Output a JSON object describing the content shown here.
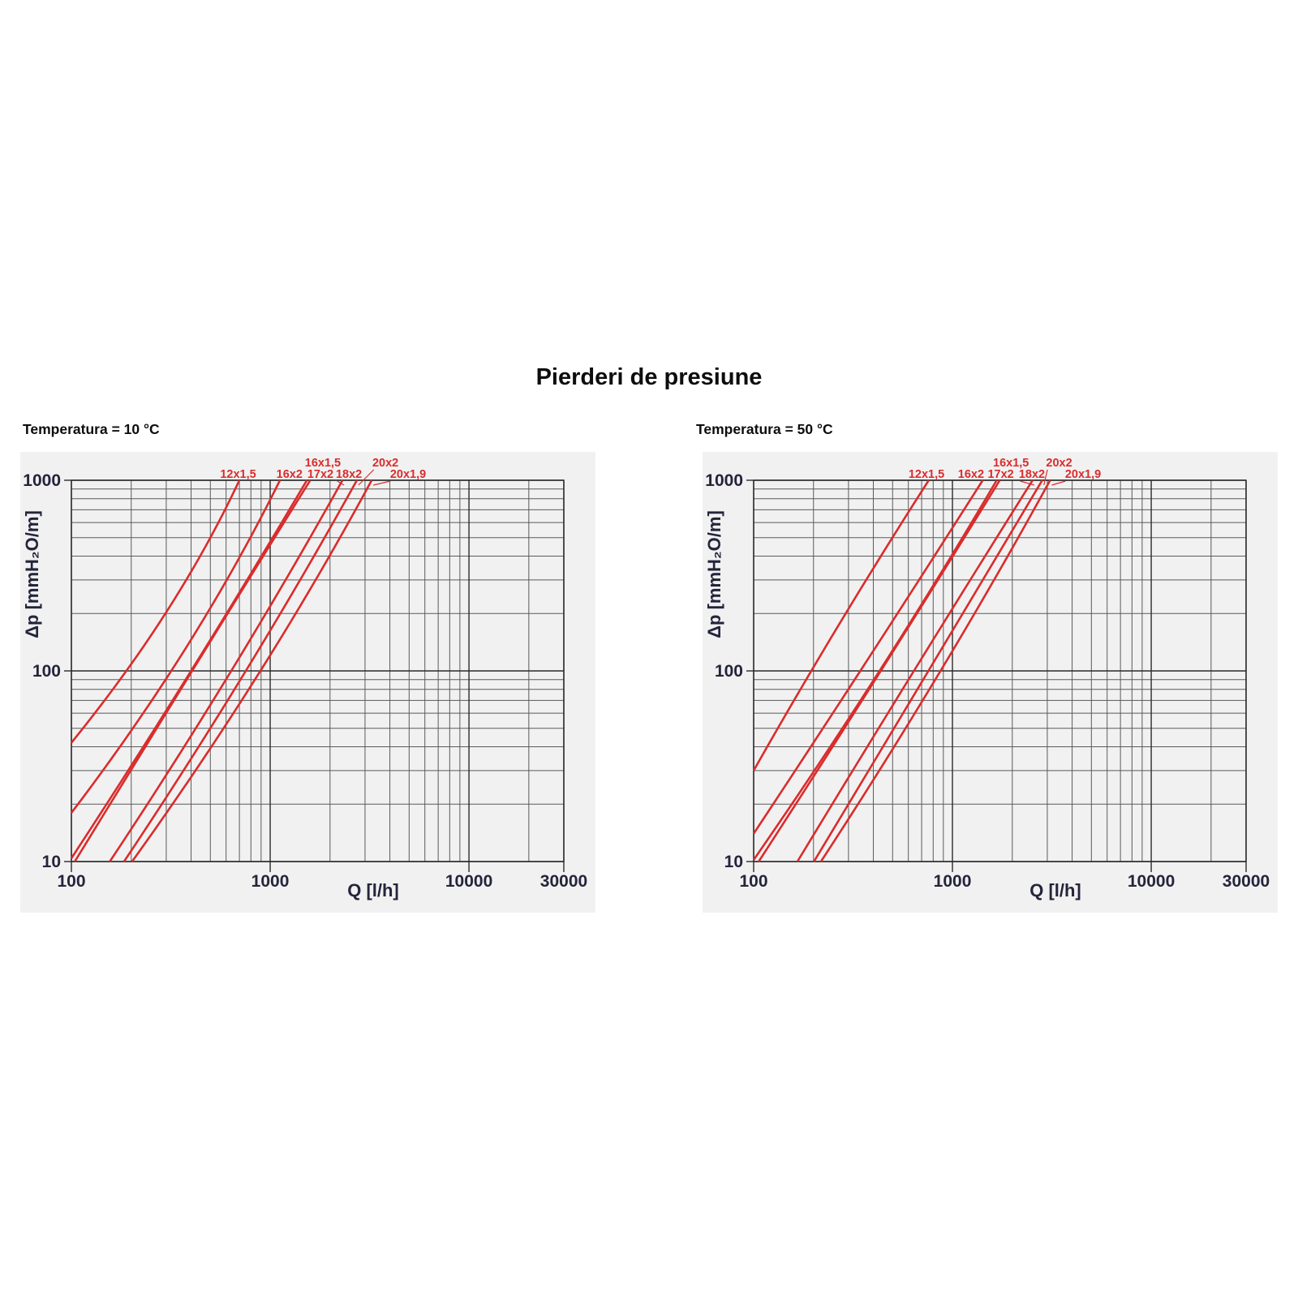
{
  "page": {
    "title": "Pierderi de presiune"
  },
  "colors": {
    "panel_bg": "#f1f1f1",
    "grid_minor": "#5a5a5a",
    "grid_major": "#2b2b2b",
    "axis_text": "#24243c",
    "series_red": "#da2c2c",
    "heading_text": "#0d0d0d"
  },
  "chart_data": [
    {
      "type": "line",
      "header": "Temperatura = 10 °C",
      "xlabel": "Q [l/h]",
      "ylabel": "Δp [mmH₂O/m]",
      "xscale": "log",
      "yscale": "log",
      "xlim": [
        100,
        30000
      ],
      "ylim": [
        10,
        1000
      ],
      "grid": true,
      "x_ticks": [
        [
          100,
          "100"
        ],
        [
          1000,
          "1000"
        ],
        [
          10000,
          "10000"
        ],
        [
          30000,
          "30000"
        ]
      ],
      "y_ticks": [
        [
          10,
          "10"
        ],
        [
          100,
          "100"
        ],
        [
          1000,
          "1000"
        ]
      ],
      "series": [
        {
          "name": "12x1,5",
          "points": [
            [
              100,
              42
            ],
            [
              189,
              100
            ],
            [
              700,
              1000
            ]
          ],
          "label_q": 690,
          "label_row": 2,
          "leader": false
        },
        {
          "name": "16x2",
          "points": [
            [
              100,
              18
            ],
            [
              318,
              100
            ],
            [
              1120,
              1000
            ]
          ],
          "label_q": 1250,
          "label_row": 2,
          "leader": false
        },
        {
          "name": "16x1,5",
          "points": [
            [
              100,
              10.4
            ],
            [
              400,
              100
            ],
            [
              1530,
              1000
            ]
          ],
          "label_q": 1840,
          "label_row": 1,
          "leader": false
        },
        {
          "name": "17x2",
          "points": [
            [
              104,
              10
            ],
            [
              405,
              100
            ],
            [
              1590,
              1000
            ]
          ],
          "label_q": 1790,
          "label_row": 2,
          "leader": false
        },
        {
          "name": "18x2",
          "points": [
            [
              156,
              10
            ],
            [
              637,
              100
            ],
            [
              2310,
              1000
            ]
          ],
          "label_q": 2490,
          "label_row": 2,
          "leader": true
        },
        {
          "name": "20x2",
          "points": [
            [
              184,
              10
            ],
            [
              754,
              100
            ],
            [
              2730,
              1000
            ]
          ],
          "label_q": 3800,
          "label_row": 1,
          "leader": true
        },
        {
          "name": "20x1,9",
          "points": [
            [
              202,
              10
            ],
            [
              893,
              100
            ],
            [
              3240,
              1000
            ]
          ],
          "label_q": 4940,
          "label_row": 2,
          "leader": true
        }
      ]
    },
    {
      "type": "line",
      "header": "Temperatura = 50 °C",
      "xlabel": "Q [l/h]",
      "ylabel": "Δp [mmH₂O/m]",
      "xscale": "log",
      "yscale": "log",
      "xlim": [
        100,
        30000
      ],
      "ylim": [
        10,
        1000
      ],
      "grid": true,
      "x_ticks": [
        [
          100,
          "100"
        ],
        [
          1000,
          "1000"
        ],
        [
          10000,
          "10000"
        ],
        [
          30000,
          "30000"
        ]
      ],
      "y_ticks": [
        [
          10,
          "10"
        ],
        [
          100,
          "100"
        ],
        [
          1000,
          "1000"
        ]
      ],
      "series": [
        {
          "name": "12x1,5",
          "points": [
            [
              100,
              30
            ],
            [
              195,
              100
            ],
            [
              760,
              1000
            ]
          ],
          "label_q": 740,
          "label_row": 2,
          "leader": false
        },
        {
          "name": "16x2",
          "points": [
            [
              100,
              14
            ],
            [
              344,
              100
            ],
            [
              1420,
              1000
            ]
          ],
          "label_q": 1240,
          "label_row": 2,
          "leader": false
        },
        {
          "name": "16x1,5",
          "points": [
            [
              100,
              10.2
            ],
            [
              430,
              100
            ],
            [
              1670,
              1000
            ]
          ],
          "label_q": 1970,
          "label_row": 1,
          "leader": false
        },
        {
          "name": "17x2",
          "points": [
            [
              106,
              10
            ],
            [
              436,
              100
            ],
            [
              1730,
              1000
            ]
          ],
          "label_q": 1750,
          "label_row": 2,
          "leader": false
        },
        {
          "name": "18x2",
          "points": [
            [
              166,
              10
            ],
            [
              640,
              100
            ],
            [
              2530,
              1000
            ]
          ],
          "label_q": 2510,
          "label_row": 2,
          "leader": true
        },
        {
          "name": "20x2",
          "points": [
            [
              201,
              10
            ],
            [
              757,
              100
            ],
            [
              2830,
              1000
            ]
          ],
          "label_q": 3440,
          "label_row": 1,
          "leader": true
        },
        {
          "name": "20x1,9",
          "points": [
            [
              218,
              10
            ],
            [
              871,
              100
            ],
            [
              3100,
              1000
            ]
          ],
          "label_q": 4540,
          "label_row": 2,
          "leader": true
        }
      ]
    }
  ]
}
